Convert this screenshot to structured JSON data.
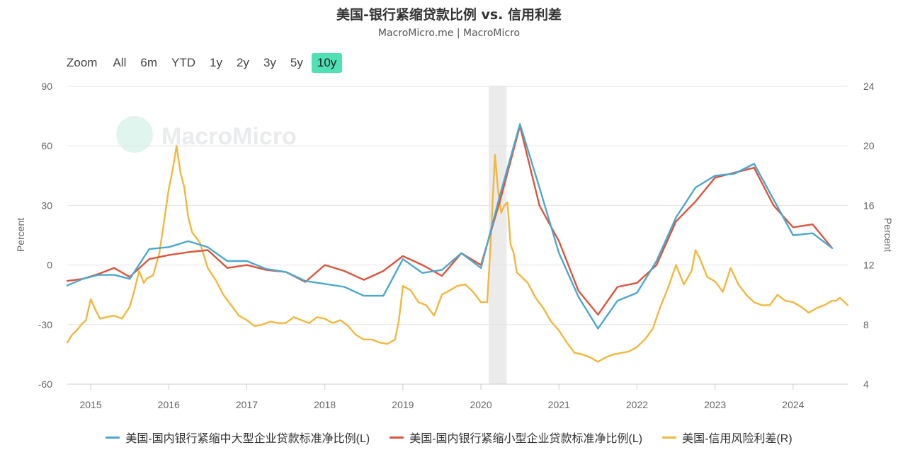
{
  "header": {
    "title": "美国-银行紧缩贷款比例 vs. 信用利差",
    "subtitle": "MacroMicro.me | MacroMicro"
  },
  "watermark": {
    "text": "MacroMicro"
  },
  "zoom": {
    "label": "Zoom",
    "buttons": [
      "All",
      "6m",
      "YTD",
      "1y",
      "2y",
      "3y",
      "5y",
      "10y"
    ],
    "active": "10y",
    "active_color": "#4fe0b6"
  },
  "chart_data": {
    "type": "line",
    "title": "美国-银行紧缩贷款比例 vs. 信用利差",
    "x_ticks": [
      "2015",
      "2016",
      "2017",
      "2018",
      "2019",
      "2020",
      "2021",
      "2022",
      "2023",
      "2024"
    ],
    "x_range": [
      2014.7,
      2024.7
    ],
    "y_left": {
      "label": "Percent",
      "range": [
        -60,
        90
      ],
      "ticks": [
        -60,
        -30,
        0,
        30,
        60,
        90
      ]
    },
    "y_right": {
      "label": "Percent",
      "range": [
        4,
        24
      ],
      "ticks": [
        4,
        8,
        12,
        16,
        20,
        24
      ]
    },
    "grid": true,
    "legend_position": "bottom",
    "recession_band": [
      2020.1,
      2020.33
    ],
    "series": [
      {
        "name": "美国-国内银行紧缩中大型企业贷款标准净比例(L)",
        "color": "#4aa8d0",
        "axis": "left",
        "x": [
          2014.7,
          2014.9,
          2015.1,
          2015.3,
          2015.5,
          2015.75,
          2016.0,
          2016.25,
          2016.5,
          2016.75,
          2017.0,
          2017.25,
          2017.5,
          2017.75,
          2018.0,
          2018.25,
          2018.5,
          2018.75,
          2019.0,
          2019.25,
          2019.5,
          2019.75,
          2020.0,
          2020.25,
          2020.5,
          2020.75,
          2021.0,
          2021.25,
          2021.5,
          2021.75,
          2022.0,
          2022.25,
          2022.5,
          2022.75,
          2023.0,
          2023.25,
          2023.5,
          2023.75,
          2024.0,
          2024.25,
          2024.5
        ],
        "y": [
          -10.3,
          -7,
          -5,
          -5,
          -7,
          8,
          9,
          12,
          9,
          2,
          2,
          -2,
          -3.5,
          -8,
          -9.5,
          -11,
          -15.5,
          -15.5,
          3,
          -4,
          -2.5,
          6,
          -1.5,
          36,
          71,
          39,
          6,
          -16,
          -32,
          -18,
          -14,
          2,
          24,
          39,
          45,
          46,
          51,
          33,
          15,
          16,
          8.5
        ]
      },
      {
        "name": "美国-国内银行紧缩小型企业贷款标准净比例(L)",
        "color": "#e0533a",
        "axis": "left",
        "x": [
          2014.7,
          2014.9,
          2015.1,
          2015.3,
          2015.5,
          2015.75,
          2016.0,
          2016.25,
          2016.5,
          2016.75,
          2017.0,
          2017.25,
          2017.5,
          2017.75,
          2018.0,
          2018.25,
          2018.5,
          2018.75,
          2019.0,
          2019.25,
          2019.5,
          2019.75,
          2020.0,
          2020.25,
          2020.5,
          2020.75,
          2021.0,
          2021.25,
          2021.5,
          2021.75,
          2022.0,
          2022.25,
          2022.5,
          2022.75,
          2023.0,
          2023.25,
          2023.5,
          2023.75,
          2024.0,
          2024.25,
          2024.5
        ],
        "y": [
          -8,
          -7,
          -4.5,
          -1.5,
          -6,
          3,
          5,
          6.5,
          7.5,
          -1.5,
          0,
          -2.5,
          -3.5,
          -8.5,
          0,
          -3,
          -7.5,
          -3,
          4.5,
          0,
          -5.5,
          6,
          0,
          33,
          70,
          30,
          12,
          -13,
          -25,
          -11,
          -9,
          0,
          22,
          32,
          44,
          46.5,
          49,
          30,
          19,
          20.5,
          8.5
        ]
      },
      {
        "name": "美国-信用风险利差(R)",
        "color": "#f3b73c",
        "axis": "right",
        "x": [
          2014.7,
          2014.76,
          2014.82,
          2014.88,
          2014.94,
          2015.0,
          2015.06,
          2015.12,
          2015.2,
          2015.3,
          2015.4,
          2015.5,
          2015.56,
          2015.62,
          2015.68,
          2015.72,
          2015.8,
          2015.88,
          2015.95,
          2016.0,
          2016.05,
          2016.1,
          2016.15,
          2016.2,
          2016.25,
          2016.3,
          2016.4,
          2016.5,
          2016.6,
          2016.7,
          2016.8,
          2016.9,
          2017.0,
          2017.1,
          2017.2,
          2017.3,
          2017.4,
          2017.5,
          2017.6,
          2017.7,
          2017.8,
          2017.9,
          2018.0,
          2018.1,
          2018.2,
          2018.3,
          2018.4,
          2018.5,
          2018.6,
          2018.7,
          2018.8,
          2018.9,
          2018.95,
          2019.0,
          2019.1,
          2019.2,
          2019.3,
          2019.4,
          2019.5,
          2019.6,
          2019.7,
          2019.8,
          2019.9,
          2020.0,
          2020.08,
          2020.12,
          2020.18,
          2020.22,
          2020.26,
          2020.3,
          2020.34,
          2020.38,
          2020.42,
          2020.46,
          2020.5,
          2020.6,
          2020.7,
          2020.8,
          2020.9,
          2021.0,
          2021.1,
          2021.2,
          2021.3,
          2021.4,
          2021.5,
          2021.6,
          2021.7,
          2021.8,
          2021.9,
          2022.0,
          2022.1,
          2022.2,
          2022.3,
          2022.4,
          2022.5,
          2022.6,
          2022.7,
          2022.75,
          2022.8,
          2022.9,
          2023.0,
          2023.1,
          2023.2,
          2023.3,
          2023.4,
          2023.5,
          2023.6,
          2023.7,
          2023.8,
          2023.9,
          2024.0,
          2024.1,
          2024.2,
          2024.3,
          2024.4,
          2024.5,
          2024.55,
          2024.6,
          2024.7
        ],
        "y": [
          6.8,
          7.3,
          7.6,
          8.0,
          8.3,
          9.7,
          9.0,
          8.4,
          8.5,
          8.6,
          8.4,
          9.2,
          10.3,
          11.6,
          10.8,
          11.1,
          11.3,
          12.8,
          15.3,
          17.1,
          18.4,
          20.0,
          18.2,
          17.2,
          15.2,
          14.2,
          13.5,
          11.8,
          11.0,
          10.0,
          9.3,
          8.6,
          8.3,
          7.9,
          8.0,
          8.2,
          8.1,
          8.1,
          8.5,
          8.3,
          8.1,
          8.5,
          8.4,
          8.1,
          8.3,
          7.9,
          7.3,
          7.0,
          7.0,
          6.8,
          6.7,
          7.0,
          8.3,
          10.6,
          10.3,
          9.5,
          9.3,
          8.6,
          10.0,
          10.3,
          10.6,
          10.7,
          10.2,
          9.5,
          9.5,
          13.0,
          19.4,
          17.0,
          15.5,
          16.0,
          16.2,
          13.4,
          12.8,
          11.5,
          11.3,
          10.8,
          9.8,
          9.1,
          8.2,
          7.6,
          6.8,
          6.1,
          6.0,
          5.8,
          5.5,
          5.8,
          6.0,
          6.1,
          6.2,
          6.5,
          7.0,
          7.7,
          9.2,
          10.5,
          12.0,
          10.7,
          11.6,
          13.0,
          12.5,
          11.2,
          10.9,
          10.2,
          11.8,
          10.7,
          10.0,
          9.5,
          9.3,
          9.3,
          10.0,
          9.6,
          9.5,
          9.2,
          8.8,
          9.1,
          9.3,
          9.6,
          9.6,
          9.8,
          9.3
        ]
      }
    ]
  }
}
